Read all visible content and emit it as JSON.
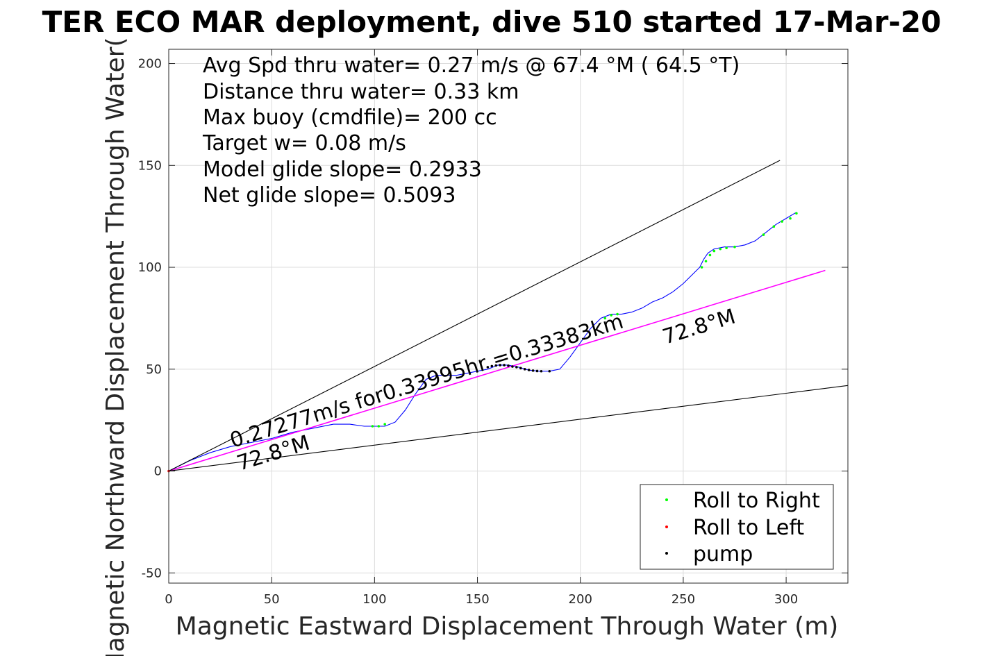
{
  "chart_data": {
    "type": "line",
    "title": "TER ECO MAR deployment, dive 510 started 17-Mar-20",
    "xlabel": "Magnetic Eastward Displacement Through Water (m)",
    "ylabel": "Magnetic Northward Displacement Through Water(",
    "xlim": [
      0,
      330
    ],
    "ylim": [
      -55,
      207
    ],
    "xticks": [
      0,
      50,
      100,
      150,
      200,
      250,
      300
    ],
    "yticks": [
      -50,
      0,
      50,
      100,
      150,
      200
    ],
    "grid": true,
    "stats": [
      "Avg Spd thru water=  0.27 m/s @  67.4 °M ( 64.5 °T)",
      "Distance thru water=  0.33 km",
      "Max buoy (cmdfile)= 200 cc",
      "Target w= 0.08 m/s",
      "Model glide slope= 0.2933",
      "Net glide slope= 0.5093"
    ],
    "annotations": {
      "speed_distance": "0.27277m/s for0.33995hr =0.33383km",
      "heading_near": "72.8°M",
      "heading_far": "72.8°M"
    },
    "legend": {
      "position": "bottom-right",
      "entries": [
        {
          "label": "Roll to Right",
          "color": "#00ff00"
        },
        {
          "label": "Roll to Left",
          "color": "#ff0000"
        },
        {
          "label": "pump",
          "color": "#000000"
        }
      ]
    },
    "series": [
      {
        "role": "track",
        "color": "#0000ff",
        "x": [
          0,
          10,
          20,
          30,
          40,
          50,
          60,
          70,
          80,
          88,
          95,
          100,
          105,
          110,
          115,
          120,
          125,
          130,
          140,
          150,
          155,
          160,
          165,
          170,
          175,
          180,
          185,
          190,
          195,
          200,
          205,
          210,
          215,
          220,
          225,
          230,
          235,
          240,
          245,
          250,
          255,
          258,
          260,
          262,
          265,
          270,
          275,
          280,
          285,
          290,
          295,
          300,
          305
        ],
        "y": [
          0,
          5,
          9,
          12,
          14,
          16,
          19,
          21,
          23,
          23,
          22,
          22,
          22,
          24,
          30,
          38,
          45,
          47,
          47,
          49,
          50,
          52,
          52,
          51,
          49.5,
          49,
          49,
          50,
          56,
          63,
          70,
          75,
          77,
          77,
          78,
          80,
          83,
          85,
          88,
          92,
          97,
          100,
          104,
          107,
          109,
          110,
          110,
          111,
          113,
          117,
          121,
          124,
          127
        ]
      },
      {
        "role": "heading-line",
        "color": "#ff00ff",
        "x": [
          0,
          319
        ],
        "y": [
          0,
          98.5
        ]
      },
      {
        "role": "glide-envelope-upper",
        "color": "#000000",
        "x": [
          0,
          297
        ],
        "y": [
          0,
          152.5
        ]
      },
      {
        "role": "glide-envelope-lower",
        "color": "#000000",
        "x": [
          0,
          330
        ],
        "y": [
          0,
          42
        ]
      }
    ],
    "markers": {
      "roll_right": {
        "color": "#00ff00",
        "x": [
          99,
          102,
          105,
          212,
          215,
          218,
          259,
          261,
          263,
          265,
          268,
          271,
          275,
          289,
          294,
          298,
          302,
          305
        ],
        "y": [
          22,
          22,
          23,
          75,
          76.5,
          77,
          100,
          103,
          106,
          108,
          109,
          109.5,
          110,
          116,
          120,
          122.5,
          124,
          126.5
        ]
      },
      "pump": {
        "color": "#000000",
        "x": [
          155,
          157,
          159,
          161,
          163,
          165,
          167,
          169,
          171,
          173,
          175,
          177,
          179,
          181,
          185
        ],
        "y": [
          51,
          51.5,
          51.8,
          52,
          52,
          51.7,
          51.3,
          51,
          50.5,
          50,
          49.6,
          49.3,
          49.1,
          49,
          49
        ]
      },
      "roll_left": {
        "color": "#ff0000",
        "x": [
          0
        ],
        "y": [
          0
        ]
      }
    }
  }
}
